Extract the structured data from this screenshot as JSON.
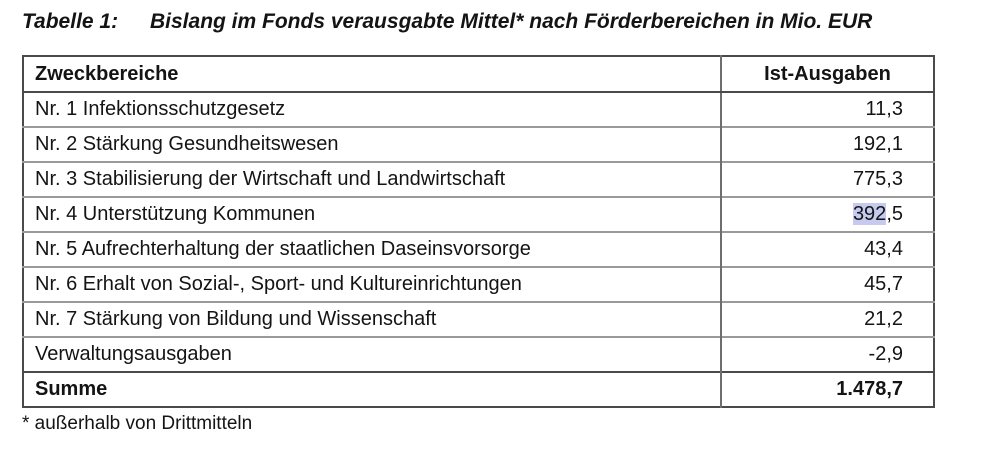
{
  "title": {
    "label": "Tabelle 1:",
    "text": "Bislang im Fonds verausgabte Mittel* nach Förderbereichen in Mio. EUR"
  },
  "table": {
    "headers": {
      "col1": "Zweckbereiche",
      "col2": "Ist-Ausgaben"
    },
    "rows": [
      {
        "label": "Nr. 1 Infektionsschutzgesetz",
        "value": "11,3"
      },
      {
        "label": "Nr. 2 Stärkung Gesundheitswesen",
        "value": "192,1"
      },
      {
        "label": "Nr. 3 Stabilisierung der Wirtschaft und Landwirtschaft",
        "value": "775,3"
      },
      {
        "label": "Nr. 4 Unterstützung Kommunen",
        "value_highlighted": "392",
        "value_rest": ",5"
      },
      {
        "label": "Nr. 5 Aufrechterhaltung der staatlichen Daseinsvorsorge",
        "value": "43,4"
      },
      {
        "label": "Nr. 6 Erhalt von Sozial-, Sport- und Kultureinrichtungen",
        "value": "45,7"
      },
      {
        "label": "Nr. 7 Stärkung von Bildung und Wissenschaft",
        "value": "21,2"
      },
      {
        "label": "Verwaltungsausgaben",
        "value": "-2,9"
      }
    ],
    "summary": {
      "label": "Summe",
      "value": "1.478,7"
    }
  },
  "footnote": "* außerhalb von Drittmitteln",
  "colors": {
    "selection_highlight": "#c6caee",
    "border_strong": "#4a4a4a",
    "border_light": "#9a9a9a",
    "text": "#141414"
  }
}
